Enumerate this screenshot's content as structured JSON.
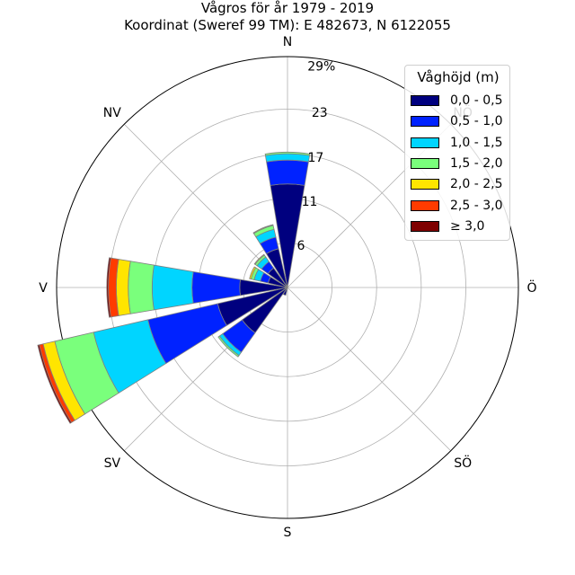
{
  "chart_data": {
    "type": "wind-rose",
    "title": "Vågros för år 1979 - 2019",
    "subtitle": "Koordinat (Sweref 99 TM): E 482673, N 6122055",
    "directions": [
      "N",
      "NÖ",
      "Ö",
      "SÖ",
      "S",
      "SV",
      "V",
      "NV"
    ],
    "compass_labels": [
      "N",
      "NV",
      "V",
      "SV",
      "S",
      "SÖ",
      "Ö"
    ],
    "radial_ticks": [
      6,
      11,
      17,
      23,
      "29%"
    ],
    "rmax": 29,
    "legend_title": "Våghöjd (m)",
    "legend_placement": "top-right",
    "bins": [
      "0,0 - 0,5",
      "0,5 - 1,0",
      "1,0 - 1,5",
      "1,5 - 2,0",
      "2,0 - 2,5",
      "2,5 - 3,0",
      "≥ 3,0"
    ],
    "colors": [
      "#00007f",
      "#0022ff",
      "#00d5ff",
      "#7aff7c",
      "#ffe500",
      "#ff3b00",
      "#7f0000"
    ],
    "sectors": [
      {
        "direction_deg": 0.0,
        "values": [
          13.0,
          3.0,
          0.8,
          0.2,
          0,
          0,
          0
        ]
      },
      {
        "direction_deg": 337.5,
        "values": [
          5.0,
          1.5,
          1.0,
          0.5,
          0.1,
          0,
          0
        ]
      },
      {
        "direction_deg": 315.0,
        "values": [
          3.0,
          1.0,
          0.7,
          0.3,
          0.1,
          0,
          0
        ]
      },
      {
        "direction_deg": 292.5,
        "values": [
          2.5,
          1.0,
          0.8,
          0.4,
          0.2,
          0,
          0
        ]
      },
      {
        "direction_deg": 270.0,
        "values": [
          6.0,
          6.0,
          5.0,
          3.0,
          1.5,
          1.0,
          0.2
        ]
      },
      {
        "direction_deg": 247.5,
        "values": [
          9.0,
          9.0,
          7.0,
          5.0,
          1.5,
          0.5,
          0.2
        ]
      },
      {
        "direction_deg": 225.0,
        "values": [
          7.0,
          3.0,
          0.5,
          0.2,
          0,
          0,
          0
        ]
      },
      {
        "direction_deg": 202.5,
        "values": [
          1.0,
          0,
          0,
          0,
          0,
          0,
          0
        ]
      }
    ],
    "grid": true
  }
}
